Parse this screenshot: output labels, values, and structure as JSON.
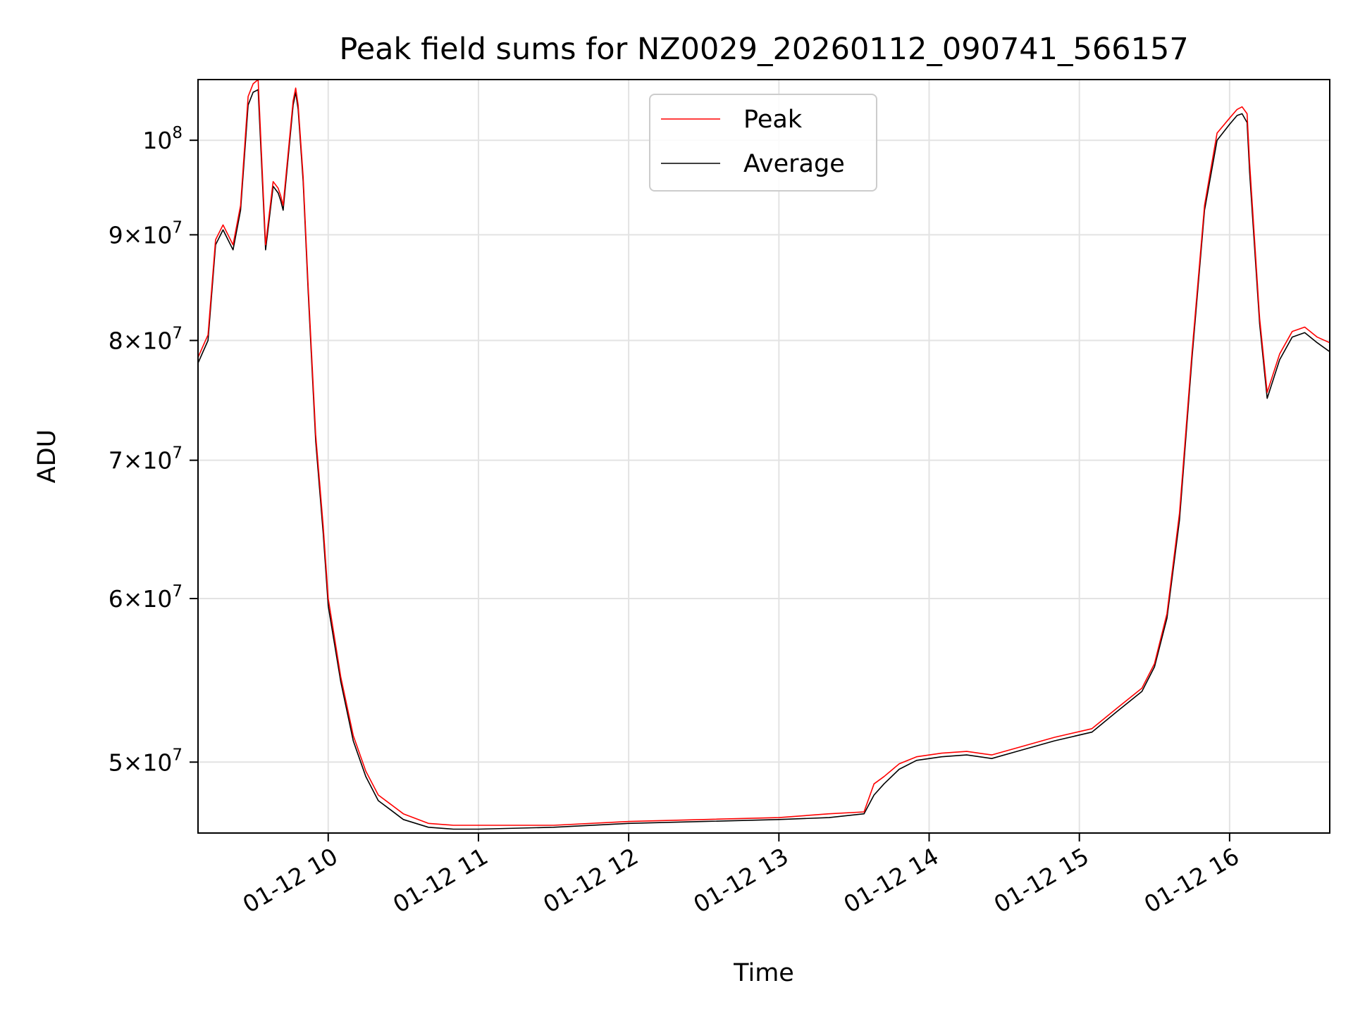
{
  "chart_data": {
    "type": "line",
    "title": "Peak field sums for NZ0029_20260112_090741_566157",
    "xlabel": "Time",
    "ylabel": "ADU",
    "yscale": "log",
    "xlim": [
      "2026-01-12 09:08",
      "2026-01-12 16:40"
    ],
    "ylim": [
      46200000,
      107000000
    ],
    "grid": true,
    "legend": {
      "placement": "top-center",
      "entries": [
        "Peak",
        "Average"
      ]
    },
    "xticks": [
      {
        "time": "2026-01-12 10:00",
        "label": "01-12 10"
      },
      {
        "time": "2026-01-12 11:00",
        "label": "01-12 11"
      },
      {
        "time": "2026-01-12 12:00",
        "label": "01-12 12"
      },
      {
        "time": "2026-01-12 13:00",
        "label": "01-12 13"
      },
      {
        "time": "2026-01-12 14:00",
        "label": "01-12 14"
      },
      {
        "time": "2026-01-12 15:00",
        "label": "01-12 15"
      },
      {
        "time": "2026-01-12 16:00",
        "label": "01-12 16"
      }
    ],
    "yticks": [
      {
        "value": 50000000,
        "mant": "5",
        "exp": "7"
      },
      {
        "value": 60000000,
        "mant": "6",
        "exp": "7"
      },
      {
        "value": 70000000,
        "mant": "7",
        "exp": "7"
      },
      {
        "value": 80000000,
        "mant": "8",
        "exp": "7"
      },
      {
        "value": 90000000,
        "mant": "9",
        "exp": "7"
      },
      {
        "value": 100000000,
        "mant": "",
        "exp": "8"
      }
    ],
    "series": [
      {
        "name": "Peak",
        "color": "#ff0000",
        "x": [
          "2026-01-12 09:08",
          "2026-01-12 09:10",
          "2026-01-12 09:12",
          "2026-01-12 09:15",
          "2026-01-12 09:18",
          "2026-01-12 09:22",
          "2026-01-12 09:25",
          "2026-01-12 09:28",
          "2026-01-12 09:30",
          "2026-01-12 09:32",
          "2026-01-12 09:35",
          "2026-01-12 09:38",
          "2026-01-12 09:40",
          "2026-01-12 09:41",
          "2026-01-12 09:42",
          "2026-01-12 09:46",
          "2026-01-12 09:47",
          "2026-01-12 09:48",
          "2026-01-12 09:50",
          "2026-01-12 09:52",
          "2026-01-12 09:55",
          "2026-01-12 09:58",
          "2026-01-12 10:00",
          "2026-01-12 10:05",
          "2026-01-12 10:10",
          "2026-01-12 10:15",
          "2026-01-12 10:20",
          "2026-01-12 10:25",
          "2026-01-12 10:30",
          "2026-01-12 10:40",
          "2026-01-12 10:50",
          "2026-01-12 11:00",
          "2026-01-12 11:30",
          "2026-01-12 12:00",
          "2026-01-12 12:30",
          "2026-01-12 13:00",
          "2026-01-12 13:20",
          "2026-01-12 13:34",
          "2026-01-12 13:38",
          "2026-01-12 13:42",
          "2026-01-12 13:48",
          "2026-01-12 13:55",
          "2026-01-12 14:05",
          "2026-01-12 14:15",
          "2026-01-12 14:25",
          "2026-01-12 14:35",
          "2026-01-12 14:50",
          "2026-01-12 15:05",
          "2026-01-12 15:15",
          "2026-01-12 15:25",
          "2026-01-12 15:30",
          "2026-01-12 15:35",
          "2026-01-12 15:40",
          "2026-01-12 15:45",
          "2026-01-12 15:50",
          "2026-01-12 15:55",
          "2026-01-12 16:00",
          "2026-01-12 16:03",
          "2026-01-12 16:05",
          "2026-01-12 16:07",
          "2026-01-12 16:08",
          "2026-01-12 16:12",
          "2026-01-12 16:15",
          "2026-01-12 16:20",
          "2026-01-12 16:25",
          "2026-01-12 16:30",
          "2026-01-12 16:35",
          "2026-01-12 16:40"
        ],
        "y": [
          78500000,
          79500000,
          80500000,
          89500000,
          91000000,
          89000000,
          93000000,
          105000000,
          106500000,
          107000000,
          89000000,
          95500000,
          94800000,
          94000000,
          93000000,
          104500000,
          106000000,
          104000000,
          96000000,
          85000000,
          72000000,
          65000000,
          60000000,
          55000000,
          51500000,
          49500000,
          48200000,
          47700000,
          47200000,
          46700000,
          46600000,
          46600000,
          46600000,
          46800000,
          46900000,
          47000000,
          47200000,
          47300000,
          48800000,
          49200000,
          49900000,
          50300000,
          50500000,
          50600000,
          50400000,
          50800000,
          51400000,
          51900000,
          53100000,
          54300000,
          55800000,
          59000000,
          66000000,
          79000000,
          93000000,
          100800000,
          102500000,
          103500000,
          103800000,
          103000000,
          97500000,
          82000000,
          75500000,
          78800000,
          80800000,
          81200000,
          80300000,
          79800000
        ]
      },
      {
        "name": "Average",
        "color": "#000000",
        "x": [
          "2026-01-12 09:08",
          "2026-01-12 09:10",
          "2026-01-12 09:12",
          "2026-01-12 09:15",
          "2026-01-12 09:18",
          "2026-01-12 09:22",
          "2026-01-12 09:25",
          "2026-01-12 09:28",
          "2026-01-12 09:30",
          "2026-01-12 09:32",
          "2026-01-12 09:35",
          "2026-01-12 09:38",
          "2026-01-12 09:40",
          "2026-01-12 09:41",
          "2026-01-12 09:42",
          "2026-01-12 09:46",
          "2026-01-12 09:47",
          "2026-01-12 09:48",
          "2026-01-12 09:50",
          "2026-01-12 09:52",
          "2026-01-12 09:55",
          "2026-01-12 09:58",
          "2026-01-12 10:00",
          "2026-01-12 10:05",
          "2026-01-12 10:10",
          "2026-01-12 10:15",
          "2026-01-12 10:20",
          "2026-01-12 10:25",
          "2026-01-12 10:30",
          "2026-01-12 10:40",
          "2026-01-12 10:50",
          "2026-01-12 11:00",
          "2026-01-12 11:30",
          "2026-01-12 12:00",
          "2026-01-12 12:30",
          "2026-01-12 13:00",
          "2026-01-12 13:20",
          "2026-01-12 13:34",
          "2026-01-12 13:38",
          "2026-01-12 13:42",
          "2026-01-12 13:48",
          "2026-01-12 13:55",
          "2026-01-12 14:05",
          "2026-01-12 14:15",
          "2026-01-12 14:25",
          "2026-01-12 14:35",
          "2026-01-12 14:50",
          "2026-01-12 15:05",
          "2026-01-12 15:15",
          "2026-01-12 15:25",
          "2026-01-12 15:30",
          "2026-01-12 15:35",
          "2026-01-12 15:40",
          "2026-01-12 15:45",
          "2026-01-12 15:50",
          "2026-01-12 15:55",
          "2026-01-12 16:00",
          "2026-01-12 16:03",
          "2026-01-12 16:05",
          "2026-01-12 16:07",
          "2026-01-12 16:08",
          "2026-01-12 16:12",
          "2026-01-12 16:15",
          "2026-01-12 16:20",
          "2026-01-12 16:25",
          "2026-01-12 16:30",
          "2026-01-12 16:35",
          "2026-01-12 16:40"
        ],
        "y": [
          78000000,
          79000000,
          80000000,
          89000000,
          90500000,
          88500000,
          92500000,
          104000000,
          105500000,
          105800000,
          88500000,
          95000000,
          94300000,
          93500000,
          92500000,
          104000000,
          105500000,
          103500000,
          95500000,
          84500000,
          71500000,
          64500000,
          59500000,
          54700000,
          51200000,
          49200000,
          47900000,
          47400000,
          46900000,
          46500000,
          46400000,
          46400000,
          46500000,
          46700000,
          46800000,
          46900000,
          47000000,
          47200000,
          48200000,
          48800000,
          49600000,
          50100000,
          50300000,
          50400000,
          50200000,
          50600000,
          51200000,
          51700000,
          52900000,
          54100000,
          55600000,
          58700000,
          65500000,
          78500000,
          92500000,
          100000000,
          101800000,
          102800000,
          103000000,
          102000000,
          96500000,
          81500000,
          75000000,
          78300000,
          80300000,
          80700000,
          79800000,
          79000000
        ]
      }
    ]
  }
}
